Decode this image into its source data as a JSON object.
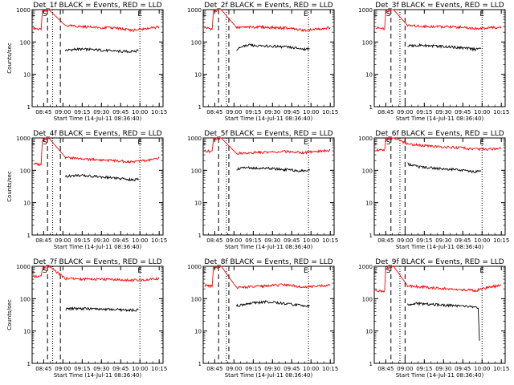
{
  "chart_data": [
    {
      "type": "line",
      "title": "Det_1f BLACK = Events, RED = LLD",
      "xlabel": "Start Time (14-Jul-11 08:36:40)",
      "ylabel": "Counts/sec",
      "yscale": "log",
      "ylim": [
        1,
        1000
      ],
      "xlim": [
        "08:36",
        "10:18"
      ],
      "xticks": [
        "08:45",
        "09:00",
        "09:15",
        "09:30",
        "09:45",
        "10:00",
        "10:15"
      ],
      "yticks": [
        "1",
        "10",
        "100",
        "1000"
      ],
      "markers": [
        {
          "label": "E",
          "x": "08:37"
        },
        {
          "label": "S",
          "x": "08:46"
        },
        {
          "label": "E",
          "x": "10:00"
        }
      ],
      "dashed_lines": [
        "08:48",
        "08:58"
      ],
      "dotted_lines": [
        "08:52",
        "10:00"
      ],
      "series": [
        {
          "color": "#ff0000",
          "x": [
            "08:37",
            "08:43",
            "08:44",
            "08:47",
            "08:49",
            "09:02",
            "09:20",
            "09:40",
            "09:55",
            "10:05",
            "10:15"
          ],
          "values": [
            270,
            240,
            900,
            950,
            1000,
            320,
            290,
            270,
            230,
            260,
            290
          ]
        },
        {
          "color": "#000000",
          "x": [
            "09:02",
            "09:10",
            "09:25",
            "09:40",
            "09:55",
            "09:59"
          ],
          "values": [
            55,
            60,
            58,
            52,
            50,
            55
          ]
        }
      ]
    },
    {
      "type": "line",
      "title": "Det_2f BLACK = Events, RED = LLD",
      "xlabel": "Start Time (14-Jul-11 08:36:40)",
      "ylabel": "",
      "yscale": "log",
      "ylim": [
        1,
        1000
      ],
      "xlim": [
        "08:36",
        "10:18"
      ],
      "xticks": [
        "08:45",
        "09:00",
        "09:15",
        "09:30",
        "09:45",
        "10:00",
        "10:15"
      ],
      "yticks": [
        "1",
        "10",
        "100",
        "1000"
      ],
      "markers": [
        {
          "label": "E",
          "x": "08:37"
        },
        {
          "label": "E",
          "x": "09:56"
        }
      ],
      "dashed_lines": [
        "08:48",
        "08:56"
      ],
      "dotted_lines": [
        "08:54",
        "09:58"
      ],
      "series": [
        {
          "color": "#ff0000",
          "x": [
            "08:37",
            "08:43",
            "08:44",
            "08:48",
            "08:50",
            "09:02",
            "09:20",
            "09:40",
            "09:55",
            "10:05",
            "10:15"
          ],
          "values": [
            280,
            250,
            900,
            950,
            1000,
            280,
            290,
            270,
            230,
            250,
            280
          ]
        },
        {
          "color": "#000000",
          "x": [
            "09:02",
            "09:10",
            "09:25",
            "09:40",
            "09:55",
            "09:59"
          ],
          "values": [
            60,
            80,
            75,
            70,
            60,
            62
          ]
        }
      ]
    },
    {
      "type": "line",
      "title": "Det_3f BLACK = Events, RED = LLD",
      "xlabel": "Start Time (14-Jul-11 08:36:40)",
      "ylabel": "",
      "yscale": "log",
      "ylim": [
        1,
        1000
      ],
      "xlim": [
        "08:36",
        "10:18"
      ],
      "xticks": [
        "08:45",
        "09:00",
        "09:15",
        "09:30",
        "09:45",
        "10:00",
        "10:15"
      ],
      "yticks": [
        "1",
        "10",
        "100",
        "1000"
      ],
      "markers": [
        {
          "label": "E",
          "x": "08:37"
        },
        {
          "label": "S",
          "x": "08:47"
        },
        {
          "label": "E",
          "x": "10:00"
        }
      ],
      "dashed_lines": [
        "08:49",
        "09:00"
      ],
      "dotted_lines": [
        "08:56",
        "10:00"
      ],
      "series": [
        {
          "color": "#ff0000",
          "x": [
            "08:37",
            "08:44",
            "08:45",
            "08:49",
            "08:51",
            "09:02",
            "09:20",
            "09:40",
            "09:55",
            "10:05",
            "10:15"
          ],
          "values": [
            280,
            250,
            900,
            950,
            1000,
            320,
            300,
            290,
            260,
            270,
            290
          ]
        },
        {
          "color": "#000000",
          "x": [
            "09:02",
            "09:10",
            "09:25",
            "09:40",
            "09:55",
            "09:59"
          ],
          "values": [
            75,
            80,
            75,
            68,
            60,
            62
          ]
        }
      ]
    },
    {
      "type": "line",
      "title": "Det_4f BLACK = Events, RED = LLD",
      "xlabel": "Start Time (14-Jul-11 08:36:40)",
      "ylabel": "Counts/sec",
      "yscale": "log",
      "ylim": [
        1,
        1000
      ],
      "xlim": [
        "08:36",
        "10:18"
      ],
      "xticks": [
        "08:45",
        "09:00",
        "09:15",
        "09:30",
        "09:45",
        "10:00",
        "10:15"
      ],
      "yticks": [
        "1",
        "10",
        "100",
        "1000"
      ],
      "markers": [
        {
          "label": "E",
          "x": "08:37"
        },
        {
          "label": "S",
          "x": "08:46"
        },
        {
          "label": "E",
          "x": "10:00"
        }
      ],
      "dashed_lines": [
        "08:48",
        "08:58"
      ],
      "dotted_lines": [
        "08:52",
        "10:00"
      ],
      "series": [
        {
          "color": "#ff0000",
          "x": [
            "08:37",
            "08:43",
            "08:44",
            "08:47",
            "08:49",
            "09:02",
            "09:20",
            "09:40",
            "09:55",
            "10:05",
            "10:15"
          ],
          "values": [
            160,
            150,
            900,
            950,
            1000,
            250,
            220,
            200,
            180,
            200,
            240
          ]
        },
        {
          "color": "#000000",
          "x": [
            "09:02",
            "09:10",
            "09:25",
            "09:40",
            "09:55",
            "09:59"
          ],
          "values": [
            65,
            70,
            65,
            58,
            50,
            55
          ]
        }
      ]
    },
    {
      "type": "line",
      "title": "Det_5f BLACK = Events, RED = LLD",
      "xlabel": "Start Time (14-Jul-11 08:36:40)",
      "ylabel": "",
      "yscale": "log",
      "ylim": [
        1,
        1000
      ],
      "xlim": [
        "08:36",
        "10:18"
      ],
      "xticks": [
        "08:45",
        "09:00",
        "09:15",
        "09:30",
        "09:45",
        "10:00",
        "10:15"
      ],
      "yticks": [
        "1",
        "10",
        "100",
        "1000"
      ],
      "markers": [
        {
          "label": "E",
          "x": "08:37"
        },
        {
          "label": "E",
          "x": "09:56"
        }
      ],
      "dashed_lines": [
        "08:48",
        "08:56"
      ],
      "dotted_lines": [
        "08:54",
        "09:58"
      ],
      "series": [
        {
          "color": "#ff0000",
          "x": [
            "08:37",
            "08:43",
            "08:44",
            "08:48",
            "08:50",
            "09:02",
            "09:20",
            "09:40",
            "09:55",
            "10:05",
            "10:15"
          ],
          "values": [
            400,
            380,
            900,
            950,
            1000,
            330,
            360,
            380,
            350,
            380,
            420
          ]
        },
        {
          "color": "#000000",
          "x": [
            "09:02",
            "09:10",
            "09:25",
            "09:40",
            "09:55",
            "09:59"
          ],
          "values": [
            110,
            120,
            115,
            105,
            95,
            100
          ]
        }
      ]
    },
    {
      "type": "line",
      "title": "Det_6f BLACK = Events, RED = LLD",
      "xlabel": "Start Time (14-Jul-11 08:36:40)",
      "ylabel": "",
      "yscale": "log",
      "ylim": [
        1,
        1000
      ],
      "xlim": [
        "08:36",
        "10:18"
      ],
      "xticks": [
        "08:45",
        "09:00",
        "09:15",
        "09:30",
        "09:45",
        "10:00",
        "10:15"
      ],
      "yticks": [
        "1",
        "10",
        "100",
        "1000"
      ],
      "markers": [
        {
          "label": "E",
          "x": "08:37"
        },
        {
          "label": "S",
          "x": "08:47"
        },
        {
          "label": "E",
          "x": "10:00"
        }
      ],
      "dashed_lines": [
        "08:49",
        "09:00"
      ],
      "dotted_lines": [
        "08:56",
        "10:00"
      ],
      "series": [
        {
          "color": "#ff0000",
          "x": [
            "08:37",
            "08:44",
            "08:45",
            "08:49",
            "08:51",
            "09:02",
            "09:20",
            "09:40",
            "09:55",
            "10:05",
            "10:15"
          ],
          "values": [
            430,
            400,
            900,
            950,
            1000,
            650,
            550,
            500,
            450,
            450,
            470
          ]
        },
        {
          "color": "#000000",
          "x": [
            "09:02",
            "09:10",
            "09:25",
            "09:40",
            "09:55",
            "09:59"
          ],
          "values": [
            160,
            130,
            115,
            105,
            90,
            92
          ]
        }
      ]
    },
    {
      "type": "line",
      "title": "Det_7f BLACK = Events, RED = LLD",
      "xlabel": "Start Time (14-Jul-11 08:36:40)",
      "ylabel": "Counts/sec",
      "yscale": "log",
      "ylim": [
        1,
        1000
      ],
      "xlim": [
        "08:36",
        "10:18"
      ],
      "xticks": [
        "08:45",
        "09:00",
        "09:15",
        "09:30",
        "09:45",
        "10:00",
        "10:15"
      ],
      "yticks": [
        "1",
        "10",
        "100",
        "1000"
      ],
      "markers": [
        {
          "label": "E",
          "x": "08:37"
        },
        {
          "label": "S",
          "x": "08:46"
        },
        {
          "label": "E",
          "x": "10:00"
        }
      ],
      "dashed_lines": [
        "08:48",
        "08:58"
      ],
      "dotted_lines": [
        "08:52",
        "10:00"
      ],
      "series": [
        {
          "color": "#ff0000",
          "x": [
            "08:37",
            "08:43",
            "08:44",
            "08:47",
            "08:49",
            "09:02",
            "09:20",
            "09:40",
            "09:55",
            "10:05",
            "10:15"
          ],
          "values": [
            500,
            480,
            900,
            950,
            1000,
            420,
            400,
            390,
            370,
            390,
            420
          ]
        },
        {
          "color": "#000000",
          "x": [
            "09:02",
            "09:10",
            "09:25",
            "09:40",
            "09:55",
            "09:59"
          ],
          "values": [
            48,
            50,
            48,
            46,
            44,
            46
          ]
        }
      ]
    },
    {
      "type": "line",
      "title": "Det_8f BLACK = Events, RED = LLD",
      "xlabel": "Start Time (14-Jul-11 08:36:40)",
      "ylabel": "",
      "yscale": "log",
      "ylim": [
        1,
        1000
      ],
      "xlim": [
        "08:36",
        "10:18"
      ],
      "xticks": [
        "08:45",
        "09:00",
        "09:15",
        "09:30",
        "09:45",
        "10:00",
        "10:15"
      ],
      "yticks": [
        "1",
        "10",
        "100",
        "1000"
      ],
      "markers": [
        {
          "label": "E",
          "x": "08:37"
        },
        {
          "label": "E",
          "x": "09:56"
        }
      ],
      "dashed_lines": [
        "08:48",
        "08:56"
      ],
      "dotted_lines": [
        "08:54",
        "09:58"
      ],
      "series": [
        {
          "color": "#ff0000",
          "x": [
            "08:37",
            "08:43",
            "08:44",
            "08:48",
            "08:50",
            "09:02",
            "09:20",
            "09:40",
            "09:55",
            "10:05",
            "10:15"
          ],
          "values": [
            260,
            240,
            900,
            950,
            1000,
            220,
            240,
            270,
            230,
            240,
            260
          ]
        },
        {
          "color": "#000000",
          "x": [
            "09:02",
            "09:10",
            "09:25",
            "09:40",
            "09:55",
            "09:59"
          ],
          "values": [
            60,
            70,
            80,
            70,
            60,
            62
          ]
        }
      ]
    },
    {
      "type": "line",
      "title": "Det_9f BLACK = Events, RED = LLD",
      "xlabel": "Start Time (14-Jul-11 08:36:40)",
      "ylabel": "",
      "yscale": "log",
      "ylim": [
        1,
        1000
      ],
      "xlim": [
        "08:36",
        "10:18"
      ],
      "xticks": [
        "08:45",
        "09:00",
        "09:15",
        "09:30",
        "09:45",
        "10:00",
        "10:15"
      ],
      "yticks": [
        "1",
        "10",
        "100",
        "1000"
      ],
      "markers": [
        {
          "label": "E",
          "x": "08:37"
        },
        {
          "label": "S",
          "x": "08:47"
        },
        {
          "label": "E",
          "x": "10:00"
        }
      ],
      "dashed_lines": [
        "08:49",
        "09:00"
      ],
      "dotted_lines": [
        "08:56",
        "10:00"
      ],
      "series": [
        {
          "color": "#ff0000",
          "x": [
            "08:37",
            "08:44",
            "08:45",
            "08:49",
            "08:51",
            "09:02",
            "09:20",
            "09:40",
            "09:55",
            "10:05",
            "10:15"
          ],
          "values": [
            180,
            170,
            900,
            950,
            1000,
            250,
            220,
            190,
            180,
            220,
            260
          ]
        },
        {
          "color": "#000000",
          "x": [
            "09:02",
            "09:10",
            "09:25",
            "09:40",
            "09:55",
            "09:57",
            "09:58"
          ],
          "values": [
            65,
            70,
            65,
            60,
            55,
            50,
            5
          ]
        }
      ]
    }
  ]
}
